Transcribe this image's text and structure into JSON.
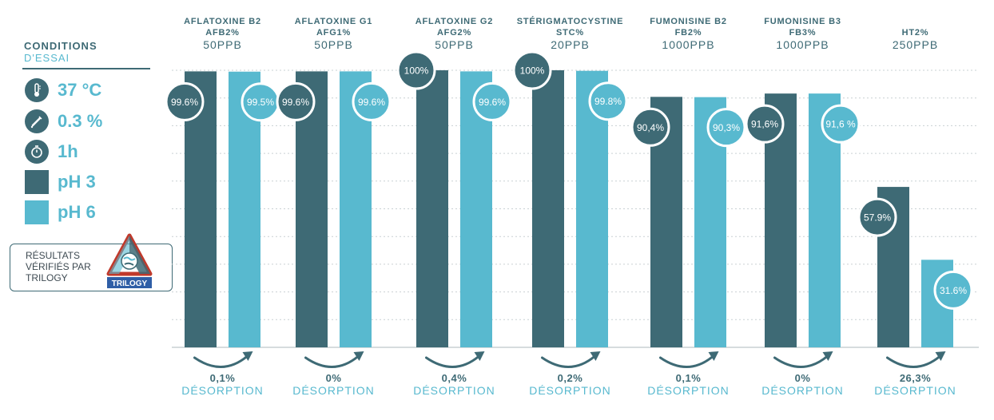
{
  "colors": {
    "dark": "#3e6a75",
    "light": "#58b9cf",
    "grid": "#c9d0d3",
    "text": "#3e6a75"
  },
  "conditions": {
    "title": "CONDITIONS",
    "subtitle": "D'ESSAI",
    "items": [
      {
        "icon": "thermometer-icon",
        "label": "37 °C"
      },
      {
        "icon": "pipette-icon",
        "label": "0.3 %"
      },
      {
        "icon": "stopwatch-icon",
        "label": "1h"
      },
      {
        "icon": "dark-square-swatch",
        "label": "pH 3"
      },
      {
        "icon": "light-square-swatch",
        "label": "pH 6"
      }
    ]
  },
  "verification": {
    "lines": [
      "RÉSULTATS",
      "VÉRIFIÉS PAR",
      "TRILOGY"
    ],
    "logo_text": "TRILOGY"
  },
  "chart_data": {
    "type": "bar",
    "series": [
      {
        "name": "pH 3",
        "color": "#3e6a75",
        "values": [
          99.6,
          99.6,
          100,
          100,
          90.4,
          91.6,
          57.9
        ],
        "labels": [
          "99.6%",
          "99.6%",
          "100%",
          "100%",
          "90,4%",
          "91,6%",
          "57.9%"
        ]
      },
      {
        "name": "pH 6",
        "color": "#58b9cf",
        "values": [
          99.5,
          99.6,
          99.6,
          99.8,
          90.3,
          91.6,
          31.6
        ],
        "labels": [
          "99.5%",
          "99.6%",
          "99.6%",
          "99.8%",
          "90,3%",
          "91,6 %",
          "31.6%"
        ]
      }
    ],
    "groups": [
      {
        "name": "AFLATOXINE B2",
        "code": "AFB2%",
        "dose": "50PPB",
        "desorption_value": "0,1%",
        "desorption_label": "DÉSORPTION"
      },
      {
        "name": "AFLATOXINE G1",
        "code": "AFG1%",
        "dose": "50PPB",
        "desorption_value": "0%",
        "desorption_label": "DÉSORPTION"
      },
      {
        "name": "AFLATOXINE G2",
        "code": "AFG2%",
        "dose": "50PPB",
        "desorption_value": "0,4%",
        "desorption_label": "DÉSORPTION"
      },
      {
        "name": "STÉRIGMATOCYSTINE",
        "code": "STC%",
        "dose": "20PPB",
        "desorption_value": "0,2%",
        "desorption_label": "DÉSORPTION"
      },
      {
        "name": "FUMONISINE B2",
        "code": "FB2%",
        "dose": "1000PPB",
        "desorption_value": "0,1%",
        "desorption_label": "DÉSORPTION"
      },
      {
        "name": "FUMONISINE B3",
        "code": "FB3%",
        "dose": "1000PPB",
        "desorption_value": "0%",
        "desorption_label": "DÉSORPTION"
      },
      {
        "name": "",
        "code": "HT2%",
        "dose": "250PPB",
        "desorption_value": "26,3%",
        "desorption_label": "DÉSORPTION"
      }
    ],
    "ylim": [
      0,
      100
    ],
    "grid": true,
    "legend": "left"
  }
}
